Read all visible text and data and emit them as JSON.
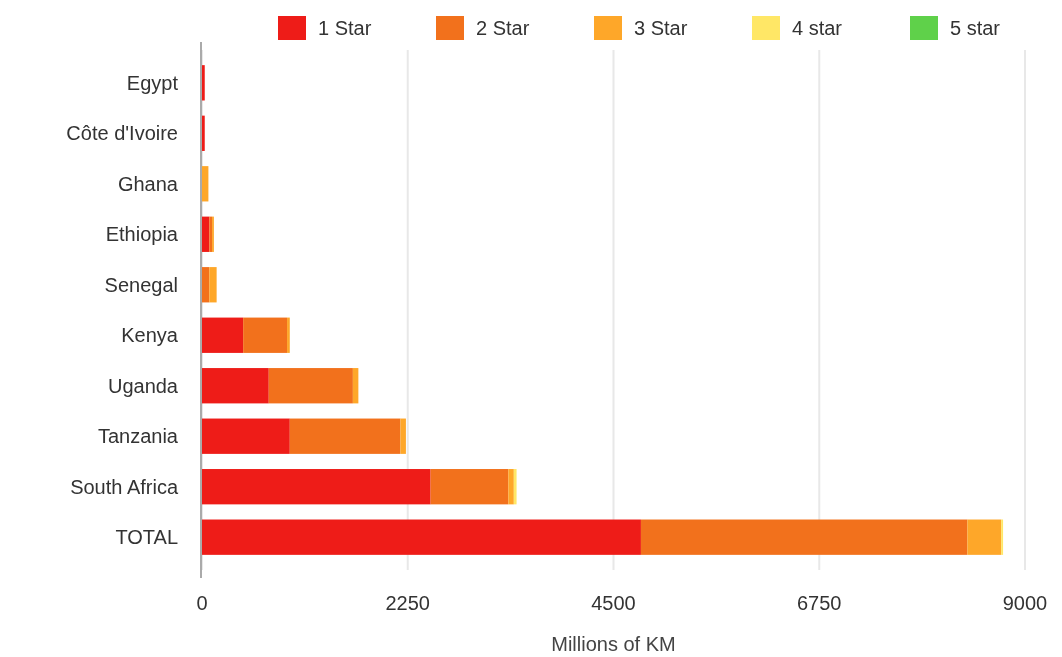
{
  "chart_data": {
    "type": "bar",
    "orientation": "horizontal",
    "stacked": true,
    "xlabel": "Millions of KM",
    "categories": [
      "Egypt",
      "Côte d'Ivoire",
      "Ghana",
      "Ethiopia",
      "Senegal",
      "Kenya",
      "Uganda",
      "Tanzania",
      "South Africa",
      "TOTAL"
    ],
    "series": [
      {
        "name": "1 Star",
        "color": "#ee1c18",
        "values": [
          30,
          30,
          0,
          80,
          0,
          450,
          730,
          960,
          2500,
          4800
        ]
      },
      {
        "name": "2 Star",
        "color": "#f2711c",
        "values": [
          0,
          0,
          0,
          30,
          80,
          480,
          920,
          1210,
          850,
          3570
        ]
      },
      {
        "name": "3 Star",
        "color": "#fea729",
        "values": [
          0,
          0,
          70,
          20,
          80,
          30,
          60,
          60,
          60,
          370
        ]
      },
      {
        "name": "4 star",
        "color": "#ffe766",
        "values": [
          0,
          0,
          0,
          0,
          0,
          0,
          0,
          0,
          30,
          20
        ]
      },
      {
        "name": "5 star",
        "color": "#5fd14a",
        "values": [
          0,
          0,
          0,
          0,
          0,
          0,
          0,
          0,
          0,
          0
        ]
      }
    ],
    "xlim": [
      0,
      9000
    ],
    "xticks": [
      0,
      2250,
      4500,
      6750,
      9000
    ],
    "grid": "x",
    "legend": "top right"
  }
}
